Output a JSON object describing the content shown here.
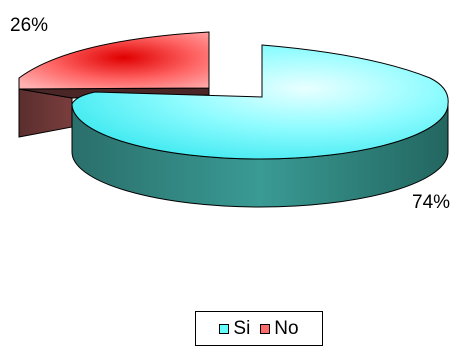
{
  "chart_data": {
    "type": "pie",
    "style": "3d-exploded",
    "slices": [
      {
        "name": "Si",
        "value": 74,
        "label": "74%",
        "color": "#66ffff",
        "side_color": "#2f7f7a"
      },
      {
        "name": "No",
        "value": 26,
        "label": "26%",
        "color": "#ff6a6a",
        "side_color": "#6b3535"
      }
    ],
    "legend": {
      "placement": "bottom-center",
      "entries": [
        "Si",
        "No"
      ]
    }
  }
}
